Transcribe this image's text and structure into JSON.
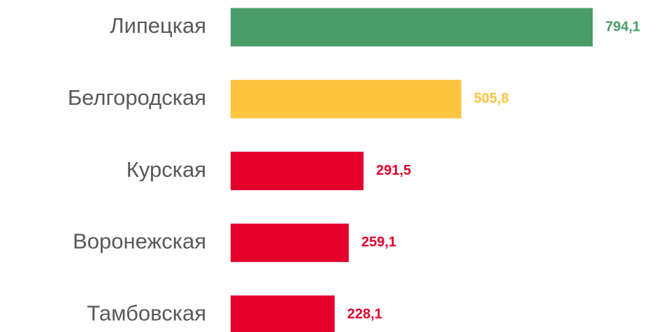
{
  "chart_data": {
    "type": "bar",
    "orientation": "horizontal",
    "categories": [
      "Липецкая",
      "Белгородская",
      "Курская",
      "Воронежская",
      "Тамбовская"
    ],
    "values": [
      794.1,
      505.8,
      291.5,
      259.1,
      228.1
    ],
    "value_labels": [
      "794,1",
      "505,8",
      "291,5",
      "259,1",
      "228,1"
    ],
    "colors": [
      "#4a9c68",
      "#fcc43f",
      "#e2002b",
      "#e2002b",
      "#e2002b"
    ]
  }
}
